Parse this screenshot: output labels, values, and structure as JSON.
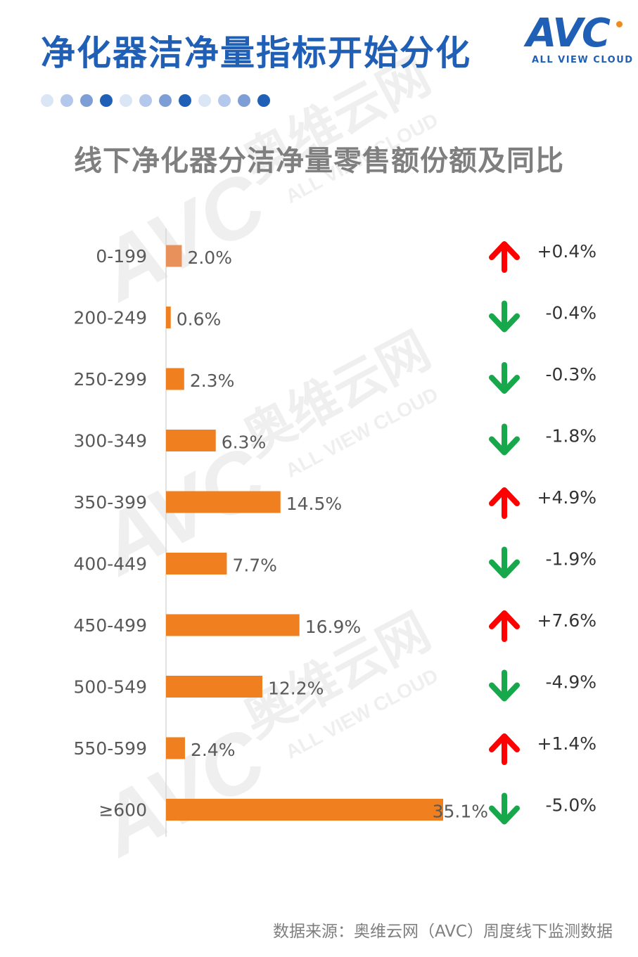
{
  "header": {
    "title": "净化器洁净量指标开始分化",
    "logo_text": "AVC",
    "logo_tagline": "ALL VIEW CLOUD"
  },
  "decor_dots": [
    "#dbe6f5",
    "#b3c8ea",
    "#7e9fd6",
    "#1f5fb5",
    "#dbe6f5",
    "#b3c8ea",
    "#7e9fd6",
    "#1f5fb5",
    "#dbe6f5",
    "#b3c8ea",
    "#7e9fd6",
    "#1f5fb5"
  ],
  "watermark": {
    "text_cn": "奥维云网",
    "text_en": "ALL VIEW CLOUD",
    "logo": "AVC"
  },
  "chart_data": {
    "type": "bar",
    "orientation": "horizontal",
    "title": "线下净化器分洁净量零售额份额及同比",
    "categories": [
      "0-199",
      "200-249",
      "250-299",
      "300-349",
      "350-399",
      "400-449",
      "450-499",
      "500-549",
      "550-599",
      "≥600"
    ],
    "values": [
      2.0,
      0.6,
      2.3,
      6.3,
      14.5,
      7.7,
      16.9,
      12.2,
      2.4,
      35.1
    ],
    "value_labels": [
      "2.0%",
      "0.6%",
      "2.3%",
      "6.3%",
      "14.5%",
      "7.7%",
      "16.9%",
      "12.2%",
      "2.4%",
      "35.1%"
    ],
    "yoy_change": [
      0.4,
      -0.4,
      -0.3,
      -1.8,
      4.9,
      -1.9,
      7.6,
      -4.9,
      1.4,
      -5.0
    ],
    "yoy_labels": [
      "+0.4%",
      "-0.4%",
      "-0.3%",
      "-1.8%",
      "+4.9%",
      "-1.9%",
      "+7.6%",
      "-4.9%",
      "+1.4%",
      "-5.0%"
    ],
    "unit": "%",
    "xlim": [
      0,
      35.1
    ],
    "grid": false,
    "legend": "none",
    "colors": {
      "bar": "#f07f1f",
      "bar_first": "#e8915a",
      "up": "#ff0000",
      "down": "#16a84a"
    }
  },
  "footer": {
    "source": "数据来源：奥维云网（AVC）周度线下监测数据"
  }
}
